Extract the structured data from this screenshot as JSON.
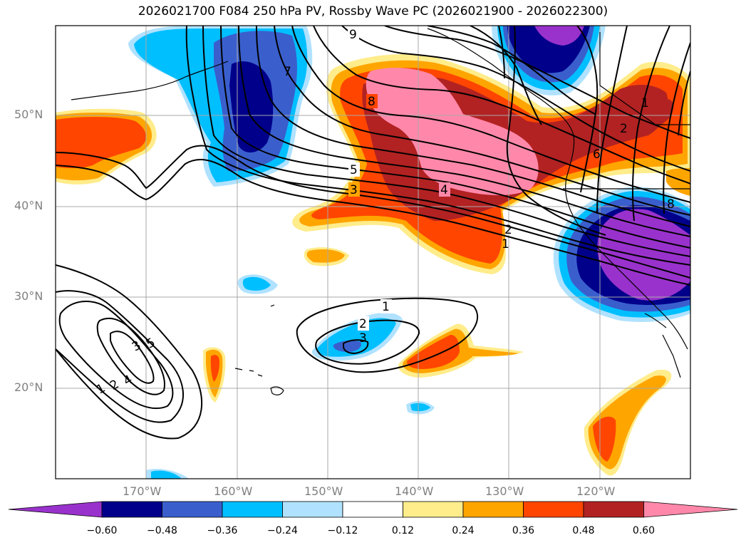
{
  "title": "2026021700 F084 250 hPa PV, Rossby Wave PC (2026021900 - 2026022300)",
  "lat_labels": [
    "50°N",
    "40°N",
    "30°N",
    "20°N"
  ],
  "lon_labels": [
    "170°W",
    "160°W",
    "150°W",
    "140°W",
    "130°W",
    "120°W"
  ],
  "colorbar": {
    "colors": [
      "#9932cc",
      "#00008b",
      "#3a5fcd",
      "#00bfff",
      "#b0e2ff",
      "#ffffff",
      "#ffec8b",
      "#ffa500",
      "#ff4500",
      "#b22222",
      "#ff88aa"
    ],
    "labels": [
      "−0.60",
      "−0.48",
      "−0.36",
      "−0.24",
      "−0.12",
      "0.12",
      "0.24",
      "0.36",
      "0.48",
      "0.60"
    ]
  },
  "contour_labels": [
    "9",
    "8",
    "7",
    "6",
    "5",
    "4",
    "3",
    "2",
    "1",
    "1",
    "2",
    "3",
    "1",
    "2",
    "3",
    "4",
    "5",
    "8",
    "2",
    "1"
  ]
}
